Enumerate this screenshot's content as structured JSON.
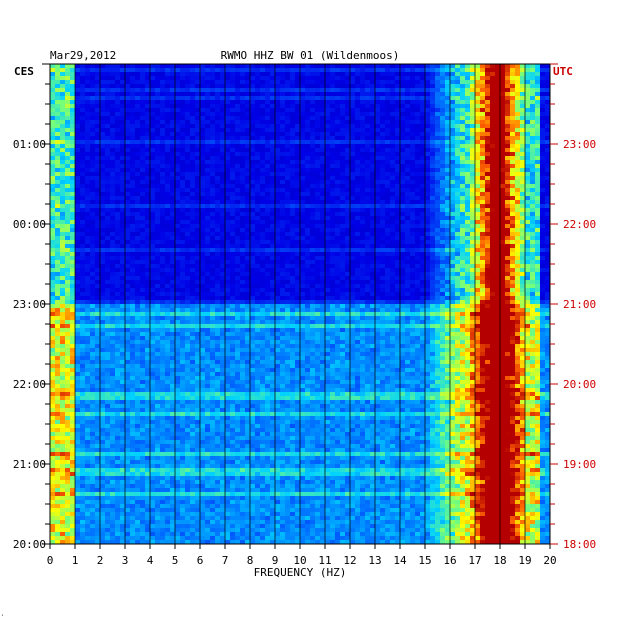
{
  "header": {
    "date": "Mar29,2012",
    "station": "RWMO HHZ BW 01 (Wildenmoos)"
  },
  "left_zone": "CES",
  "right_zone": "UTC",
  "corner_mark": "⸼",
  "colors": {
    "background": "#ffffff",
    "text": "#000000",
    "utc": "#cc0000",
    "grid": "#000000"
  },
  "chart_data": {
    "type": "heatmap",
    "title": "RWMO HHZ BW 01 (Wildenmoos)",
    "xlabel": "FREQUENCY (HZ)",
    "ylabel": "",
    "xlim": [
      0,
      20
    ],
    "x_ticks": [
      "0",
      "1",
      "2",
      "3",
      "4",
      "5",
      "6",
      "7",
      "8",
      "9",
      "10",
      "11",
      "12",
      "13",
      "14",
      "15",
      "16",
      "17",
      "18",
      "19",
      "20"
    ],
    "left_time_ticks": [
      "01:00",
      "00:00",
      "23:00",
      "22:00",
      "21:00",
      "20:00"
    ],
    "right_time_ticks": [
      "23:00",
      "22:00",
      "21:00",
      "20:00",
      "19:00",
      "18:00"
    ],
    "colormap": [
      "#00008c",
      "#0000e6",
      "#0064ff",
      "#00d2ff",
      "#78ff78",
      "#ffff00",
      "#ff6400",
      "#b40000"
    ],
    "features": {
      "dominant_frequency_hz": 17.9,
      "high_energy_band_hz": [
        15,
        19.5
      ],
      "low_frequency_band_hz": [
        0,
        1
      ],
      "elevated_noise_interval_utc": [
        "18:00",
        "21:00"
      ]
    }
  }
}
